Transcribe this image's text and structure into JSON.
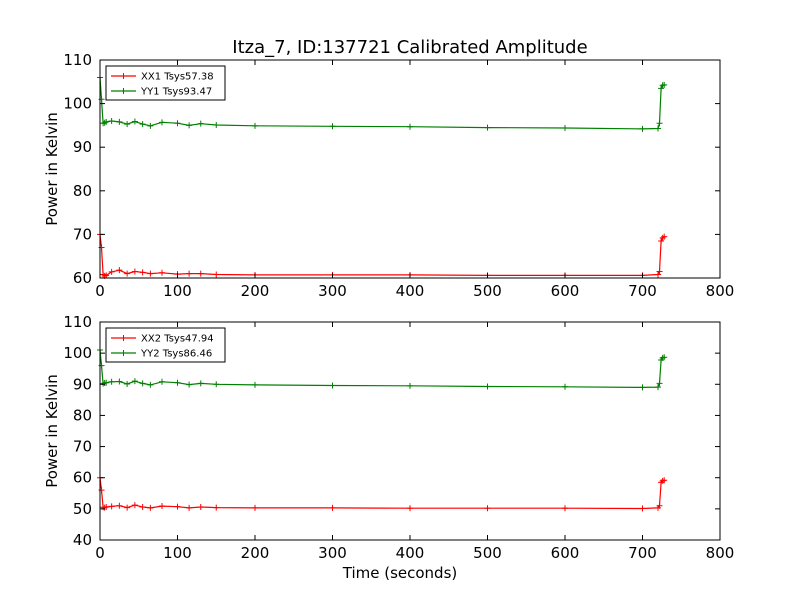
{
  "title": "Itza_7, ID:137721 Calibrated Amplitude",
  "chart_data": [
    {
      "type": "line",
      "ylabel": "Power in Kelvin",
      "xlabel": "",
      "xlim": [
        0,
        800
      ],
      "ylim": [
        60,
        110
      ],
      "xticks": [
        "0",
        "100",
        "200",
        "300",
        "400",
        "500",
        "600",
        "700",
        "800"
      ],
      "yticks": [
        "60",
        "70",
        "80",
        "90",
        "100",
        "110"
      ],
      "legend_position": "top-left",
      "series": [
        {
          "name": "XX1 Tsys57.38",
          "color": "#ff0000",
          "x": [
            0,
            2,
            4,
            6,
            8,
            15,
            25,
            35,
            45,
            55,
            65,
            80,
            100,
            115,
            130,
            150,
            200,
            300,
            400,
            500,
            600,
            700,
            720,
            722,
            724,
            726,
            728
          ],
          "y": [
            70,
            67,
            60.8,
            60.5,
            60.6,
            61.4,
            61.8,
            61.0,
            61.5,
            61.3,
            61.0,
            61.2,
            60.9,
            61.0,
            61.0,
            60.8,
            60.7,
            60.7,
            60.7,
            60.6,
            60.6,
            60.6,
            60.8,
            61.5,
            68.5,
            69.2,
            69.5
          ]
        },
        {
          "name": "YY1 Tsys93.47",
          "color": "#008000",
          "x": [
            0,
            2,
            4,
            6,
            8,
            15,
            25,
            35,
            45,
            55,
            65,
            80,
            100,
            115,
            130,
            150,
            200,
            300,
            400,
            500,
            600,
            700,
            720,
            722,
            724,
            726,
            728
          ],
          "y": [
            106,
            101,
            95.5,
            95.6,
            95.8,
            96.0,
            95.8,
            95.3,
            95.9,
            95.3,
            94.9,
            95.7,
            95.5,
            95.0,
            95.4,
            95.1,
            94.9,
            94.8,
            94.7,
            94.5,
            94.4,
            94.2,
            94.3,
            95.5,
            103.5,
            104.2,
            104.3
          ]
        }
      ]
    },
    {
      "type": "line",
      "ylabel": "Power in Kelvin",
      "xlabel": "Time (seconds)",
      "xlim": [
        0,
        800
      ],
      "ylim": [
        40,
        110
      ],
      "xticks": [
        "0",
        "100",
        "200",
        "300",
        "400",
        "500",
        "600",
        "700",
        "800"
      ],
      "yticks": [
        "40",
        "50",
        "60",
        "70",
        "80",
        "90",
        "100",
        "110"
      ],
      "legend_position": "top-left",
      "series": [
        {
          "name": "XX2 Tsys47.94",
          "color": "#ff0000",
          "x": [
            0,
            2,
            4,
            6,
            8,
            15,
            25,
            35,
            45,
            55,
            65,
            80,
            100,
            115,
            130,
            150,
            200,
            300,
            400,
            500,
            600,
            700,
            720,
            722,
            724,
            726,
            728
          ],
          "y": [
            60,
            56,
            50.5,
            50.4,
            50.6,
            50.8,
            51.0,
            50.4,
            51.2,
            50.6,
            50.3,
            50.9,
            50.7,
            50.3,
            50.6,
            50.4,
            50.3,
            50.3,
            50.2,
            50.2,
            50.2,
            50.1,
            50.3,
            51.0,
            58.5,
            59.0,
            59.2
          ]
        },
        {
          "name": "YY2 Tsys86.46",
          "color": "#008000",
          "x": [
            0,
            2,
            4,
            6,
            8,
            15,
            25,
            35,
            45,
            55,
            65,
            80,
            100,
            115,
            130,
            150,
            200,
            300,
            400,
            500,
            600,
            700,
            720,
            722,
            724,
            726,
            728
          ],
          "y": [
            101,
            96,
            90.2,
            90.4,
            90.5,
            90.8,
            90.9,
            90.1,
            91.0,
            90.3,
            89.8,
            90.8,
            90.5,
            89.9,
            90.3,
            90.0,
            89.8,
            89.6,
            89.5,
            89.3,
            89.2,
            89.0,
            89.1,
            90.3,
            97.8,
            98.5,
            98.7
          ]
        }
      ]
    }
  ]
}
